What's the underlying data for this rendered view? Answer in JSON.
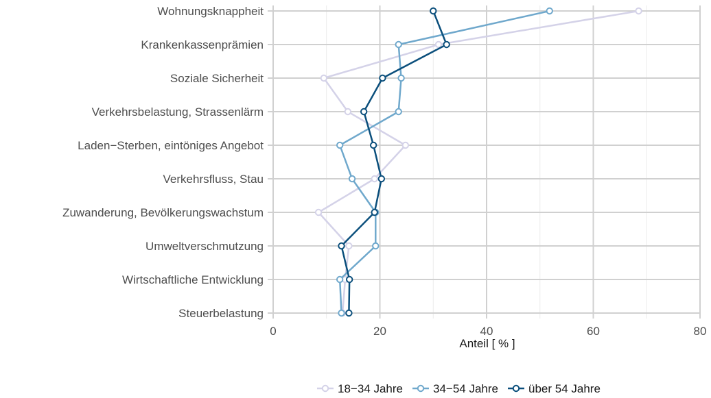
{
  "chart_data": {
    "type": "line",
    "orientation": "horizontal",
    "title": "",
    "xlabel": "Anteil [ % ]",
    "ylabel": "",
    "xlim": [
      0,
      80
    ],
    "xticks": [
      0,
      20,
      40,
      60,
      80
    ],
    "grid": true,
    "legend_position": "bottom-right",
    "categories": [
      "Wohnungsknappheit",
      "Krankenkassenprämien",
      "Soziale Sicherheit",
      "Verkehrsbelastung, Strassenlärm",
      "Laden−Sterben, eintöniges Angebot",
      "Verkehrsfluss, Stau",
      "Zuwanderung, Bevölkerungswachstum",
      "Umweltverschmutzung",
      "Wirtschaftliche Entwicklung",
      "Steuerbelastung"
    ],
    "series": [
      {
        "name": "18−34 Jahre",
        "color": "#d4d2e8",
        "values": [
          68.5,
          31,
          9.5,
          14,
          24.8,
          19,
          8.5,
          14.2,
          13.5,
          13
        ]
      },
      {
        "name": "34−54 Jahre",
        "color": "#6fa8cc",
        "values": [
          51.8,
          23.5,
          24,
          23.5,
          12.5,
          14.8,
          19.2,
          19.2,
          12.5,
          12.8
        ]
      },
      {
        "name": "über 54 Jahre",
        "color": "#0b4f7c",
        "values": [
          30,
          32.5,
          20.5,
          17,
          18.8,
          20.3,
          19,
          12.8,
          14.3,
          14.2
        ]
      }
    ]
  }
}
